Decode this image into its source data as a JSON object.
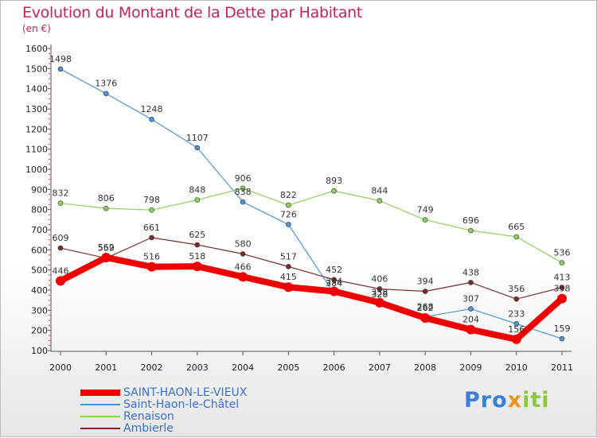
{
  "title": "Evolution du Montant de la Dette par Habitant",
  "subtitle": "(en €)",
  "logo": [
    "Pro",
    "x",
    "iti"
  ],
  "chart_data": {
    "type": "line",
    "x": [
      "2000",
      "2001",
      "2002",
      "2003",
      "2004",
      "2005",
      "2006",
      "2007",
      "2008",
      "2009",
      "2010",
      "2011"
    ],
    "ylim": [
      100,
      1600
    ],
    "yticks": [
      100,
      200,
      300,
      400,
      500,
      600,
      700,
      800,
      900,
      1000,
      1100,
      1200,
      1300,
      1400,
      1500,
      1600
    ],
    "grid": false,
    "legend_position": "bottom-left",
    "series": [
      {
        "name": "SAINT-HAON-LE-VIEUX",
        "color": "#ee0000",
        "width": 8,
        "marker": 6,
        "values": [
          446,
          562,
          516,
          518,
          466,
          415,
          394,
          338,
          262,
          204,
          156,
          358
        ],
        "labels": [
          "446",
          "562",
          "516",
          "518",
          "466",
          "415",
          "394",
          "338",
          "262",
          "204",
          "156",
          "358"
        ]
      },
      {
        "name": "Saint-Haon-le-Châtel",
        "color": "#4f93d3",
        "width": 1.2,
        "marker": 3,
        "values": [
          1498,
          1376,
          1248,
          1107,
          838,
          726,
          384,
          328,
          268,
          307,
          233,
          159
        ],
        "labels": [
          "1498",
          "1376",
          "1248",
          "1107",
          "838",
          "726",
          "384",
          "328",
          "268",
          "307",
          "233",
          "159"
        ]
      },
      {
        "name": "Renaison",
        "color": "#8cd159",
        "width": 1.2,
        "marker": 3,
        "values": [
          832,
          806,
          798,
          848,
          906,
          822,
          893,
          844,
          749,
          696,
          665,
          536
        ],
        "labels": [
          "832",
          "806",
          "798",
          "848",
          "906",
          "822",
          "893",
          "844",
          "749",
          "696",
          "665",
          "536"
        ]
      },
      {
        "name": "Ambierle",
        "color": "#7a2c2c",
        "width": 1.2,
        "marker": 3,
        "values": [
          609,
          559,
          661,
          625,
          580,
          517,
          452,
          406,
          394,
          438,
          356,
          413
        ],
        "labels": [
          "609",
          "559",
          "661",
          "625",
          "580",
          "517",
          "452",
          "406",
          "394",
          "438",
          "356",
          "413"
        ]
      }
    ]
  }
}
